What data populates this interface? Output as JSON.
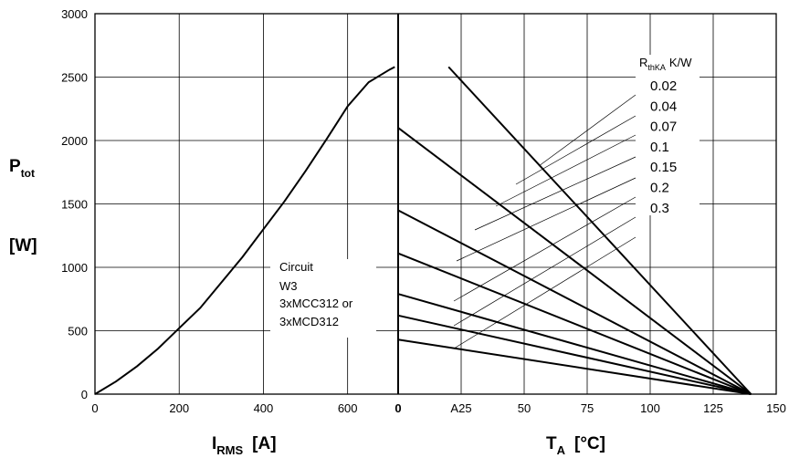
{
  "chart_data": [
    {
      "type": "line",
      "panel": "left",
      "xlabel_main": "I",
      "xlabel_sub": "RMS",
      "xlabel_unit": "[A]",
      "ylabel_main": "P",
      "ylabel_sub": "tot",
      "ylabel_unit": "[W]",
      "xlim": [
        0,
        720
      ],
      "ylim": [
        0,
        3000
      ],
      "x_ticks": [
        "0",
        "200",
        "400",
        "600"
      ],
      "y_ticks": [
        "0",
        "500",
        "1000",
        "1500",
        "2000",
        "2500",
        "3000"
      ],
      "grid": true,
      "annotation": [
        "Circuit",
        "W3",
        "3xMCC312 or",
        "3xMCD312"
      ],
      "series": [
        {
          "x": [
            0,
            50,
            100,
            150,
            200,
            250,
            300,
            350,
            400,
            450,
            500,
            550,
            600,
            650,
            700,
            712
          ],
          "y": [
            0,
            100,
            220,
            360,
            520,
            680,
            880,
            1080,
            1300,
            1520,
            1760,
            2010,
            2270,
            2460,
            2560,
            2580
          ]
        }
      ]
    },
    {
      "type": "line",
      "panel": "right",
      "xlabel_main": "T",
      "xlabel_sub": "A",
      "xlabel_unit": "[°C]",
      "xlim": [
        0,
        150
      ],
      "x_ticks": [
        "0",
        "A25",
        "50",
        "75",
        "100",
        "125",
        "150"
      ],
      "grid": true,
      "legend_title_main": "R",
      "legend_title_sub": "thKA",
      "legend_title_unit": "K/W",
      "legend_entries": [
        "0.02",
        "0.04",
        "0.07",
        "0.1",
        "0.15",
        "0.2",
        "0.3"
      ],
      "end_point": {
        "x": 140,
        "y": 0
      },
      "series": [
        {
          "name": "0.02",
          "start": {
            "x": 20,
            "y": 2580
          }
        },
        {
          "name": "0.04",
          "start": {
            "x": 0,
            "y": 2100
          }
        },
        {
          "name": "0.07",
          "start": {
            "x": 0,
            "y": 1450
          }
        },
        {
          "name": "0.1",
          "start": {
            "x": 0,
            "y": 1110
          }
        },
        {
          "name": "0.15",
          "start": {
            "x": 0,
            "y": 790
          }
        },
        {
          "name": "0.2",
          "start": {
            "x": 0,
            "y": 620
          }
        },
        {
          "name": "0.3",
          "start": {
            "x": 0,
            "y": 430
          }
        }
      ]
    }
  ]
}
